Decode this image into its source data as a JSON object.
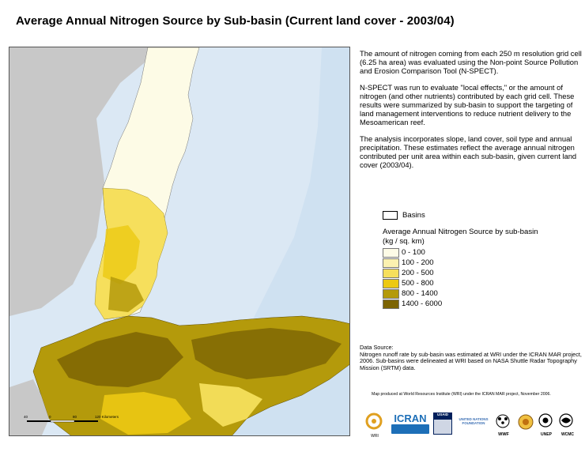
{
  "title": "Average Annual Nitrogen Source by Sub-basin (Current land cover - 2003/04)",
  "description": [
    "The amount of nitrogen coming from each 250 m resolution grid cell (6.25 ha area) was evaluated using the Non-point Source Pollution and Erosion Comparison Tool (N-SPECT).",
    "N-SPECT was run to evaluate \"local effects,\" or the amount of nitrogen (and other nutrients) contributed by each grid cell. These results were summarized by sub-basin to support the targeting of land management interventions to reduce nutrient delivery to the Mesoamerican reef.",
    "The analysis incorporates slope, land cover, soil type and annual precipitation. These estimates reflect the average annual nitrogen contributed per unit area within each sub-basin, given current land cover (2003/04)."
  ],
  "legend": {
    "basins_label": "Basins",
    "title": "Average Annual Nitrogen Source by sub-basin (kg / sq. km)",
    "classes": [
      {
        "label": "0 - 100",
        "color": "#fdfbe6"
      },
      {
        "label": "100 - 200",
        "color": "#fbf1b0"
      },
      {
        "label": "200 - 500",
        "color": "#f6df5c"
      },
      {
        "label": "500 - 800",
        "color": "#ecc913"
      },
      {
        "label": "800 - 1400",
        "color": "#b49a0b"
      },
      {
        "label": "1400 - 6000",
        "color": "#7c6404"
      }
    ]
  },
  "data_source": {
    "heading": "Data Source:",
    "text": "Nitrogen runoff rate by sub-basin was estimated at WRI under the ICRAN MAR project, 2006. Sub-basins were delineated at WRI based on NASA Shuttle Radar Topography Mission (SRTM) data."
  },
  "credit": "Map produced at World Resources Institute (WRI) under the ICRAN MAR project, November 2006.",
  "scale_bar": {
    "labels": [
      "40",
      "0",
      "80",
      "120 Kilometers"
    ]
  },
  "logos": [
    {
      "name": "WRI",
      "text": "WRI"
    },
    {
      "name": "ICRAN",
      "text": "ICRAN"
    },
    {
      "name": "USAID",
      "text": "USAID"
    },
    {
      "name": "United Nations Foundation",
      "text": "UNITED NATIONS FOUNDATION"
    },
    {
      "name": "WWF",
      "text": "WWF"
    },
    {
      "name": "UNEP",
      "text": "UNEP"
    },
    {
      "name": "WCMC",
      "text": "WCMC"
    }
  ]
}
